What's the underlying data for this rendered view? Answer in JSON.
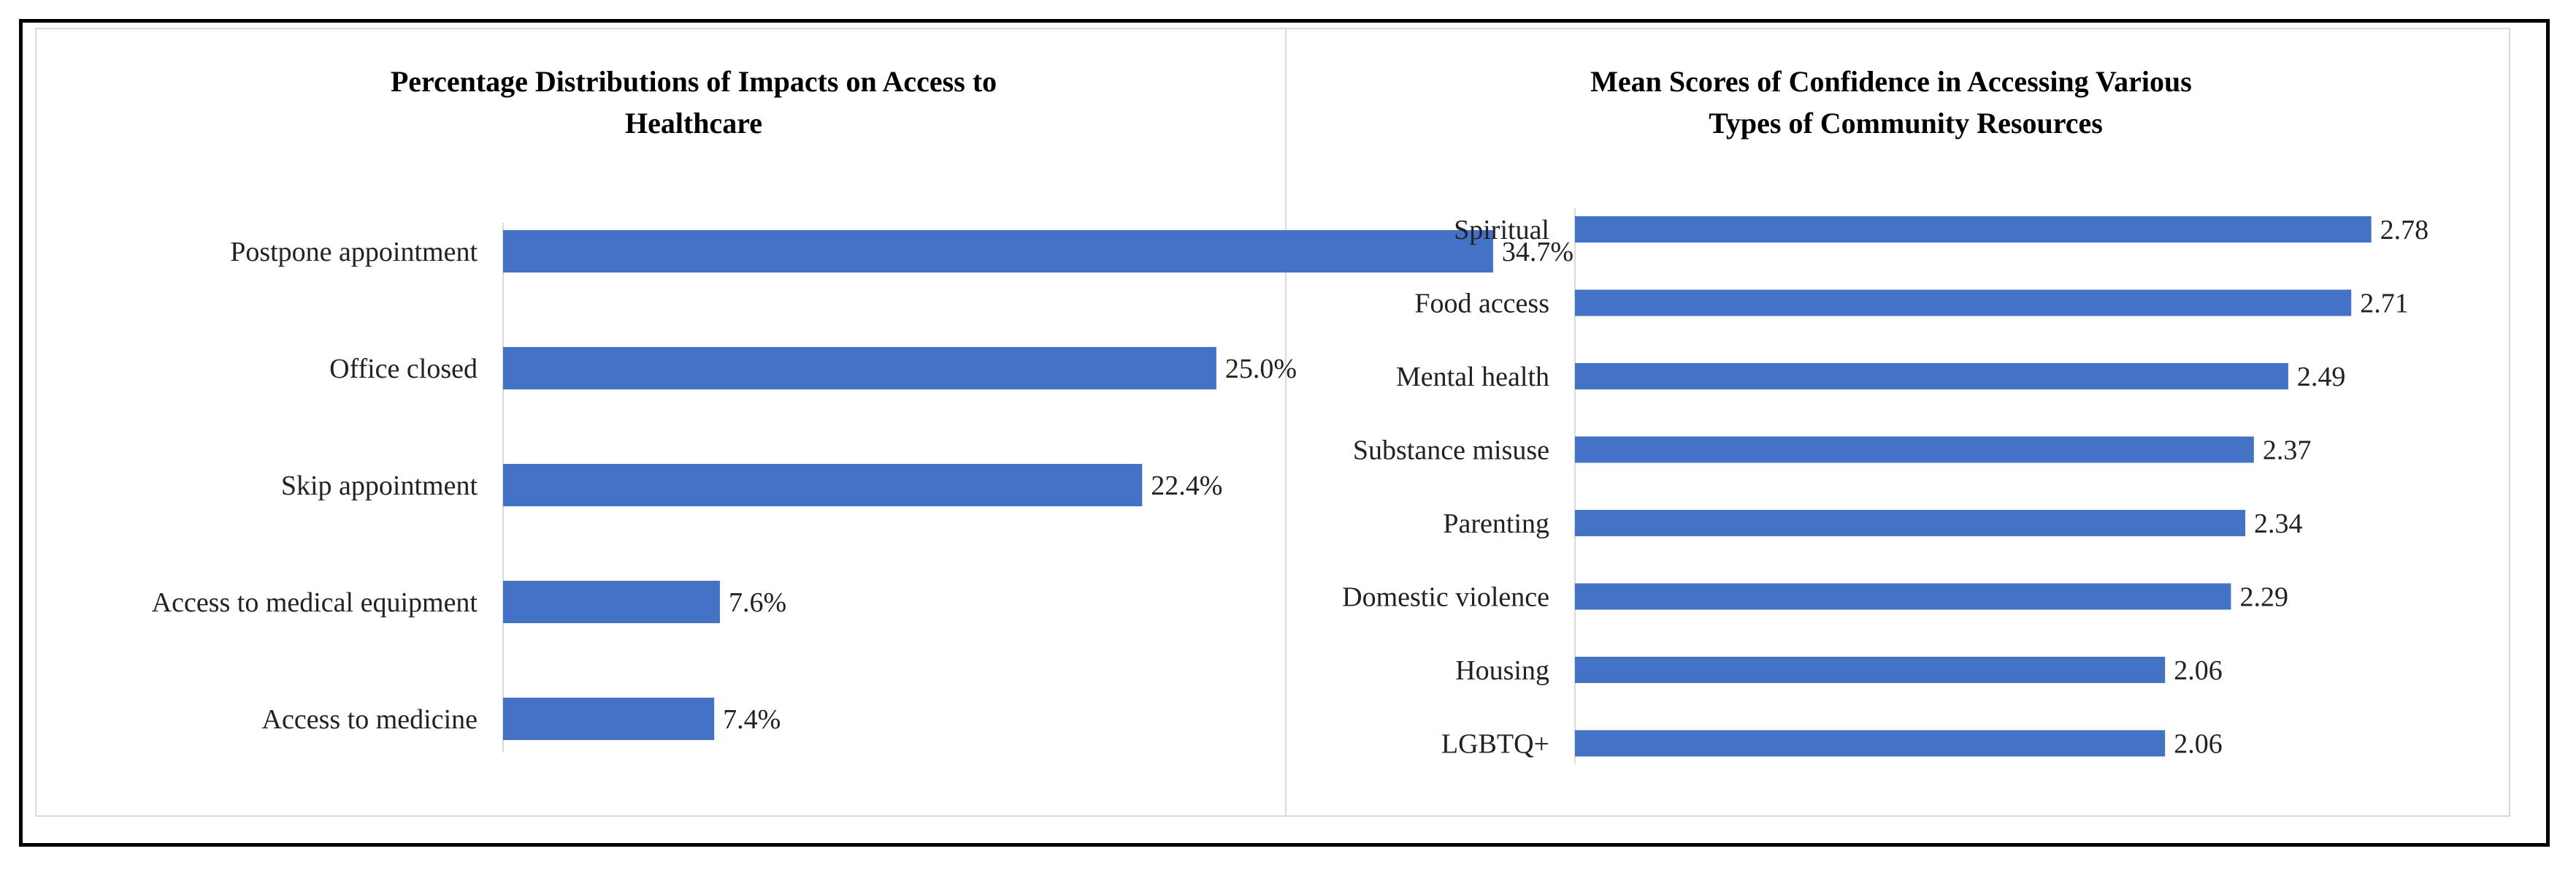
{
  "chart_data": [
    {
      "type": "bar",
      "orientation": "horizontal",
      "title": [
        "Percentage Distributions of Impacts on Access to",
        "Healthcare"
      ],
      "categories": [
        "Postpone appointment",
        "Office closed",
        "Skip appointment",
        "Access to medical equipment",
        "Access to medicine"
      ],
      "values": [
        34.7,
        25.0,
        22.4,
        7.6,
        7.4
      ],
      "value_labels": [
        "34.7%",
        "25.0%",
        "22.4%",
        "7.6%",
        "7.4%"
      ],
      "xlim": [
        0,
        40
      ],
      "color": "#4472c4",
      "grid": false
    },
    {
      "type": "bar",
      "orientation": "horizontal",
      "title": [
        "Mean Scores of Confidence in Accessing Various",
        "Types of Community Resources"
      ],
      "categories": [
        "Spiritual",
        "Food access",
        "Mental health",
        "Substance misuse",
        "Parenting",
        "Domestic violence",
        "Housing",
        "LGBTQ+"
      ],
      "values": [
        2.78,
        2.71,
        2.49,
        2.37,
        2.34,
        2.29,
        2.06,
        2.06
      ],
      "value_labels": [
        "2.78",
        "2.71",
        "2.49",
        "2.37",
        "2.34",
        "2.29",
        "2.06",
        "2.06"
      ],
      "xlim": [
        0,
        3
      ],
      "color": "#4472c4",
      "grid": false
    }
  ]
}
